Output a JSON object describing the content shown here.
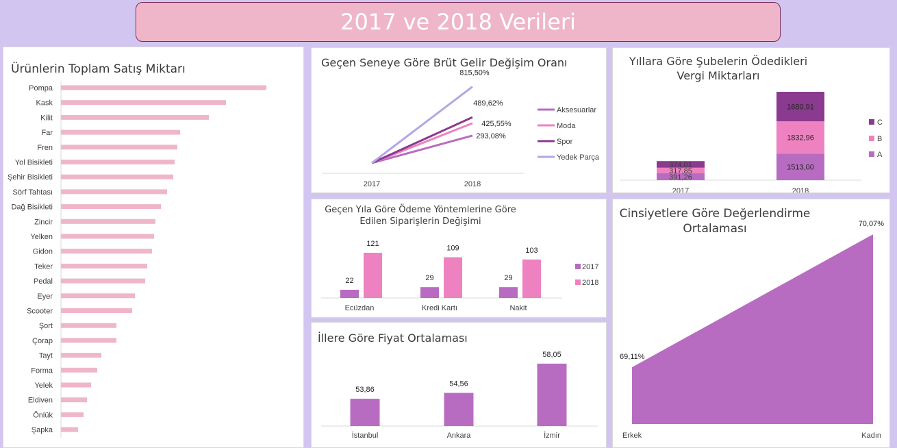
{
  "header": {
    "title": "2017 ve 2018 Verileri"
  },
  "colors": {
    "background": "#d2c6f0",
    "banner": "#efb6c9",
    "bar_pink_light": "#efb6c9",
    "purple": "#b86cc1",
    "pink": "#ee82c0",
    "dark_purple": "#8a3a8f",
    "lavender": "#b3a6e6"
  },
  "chart_data": [
    {
      "id": "product-sales",
      "type": "bar",
      "orientation": "horizontal",
      "title": "Ürünlerin Toplam Satış Miktarı",
      "categories": [
        "Pompa",
        "Kask",
        "Kilit",
        "Far",
        "Fren",
        "Yol Bisikleti",
        "Şehir Bisikleti",
        "Sörf Tahtası",
        "Dağ Bisikleti",
        "Zincir",
        "Yelken",
        "Gidon",
        "Teker",
        "Pedal",
        "Eyer",
        "Scooter",
        "Şort",
        "Çorap",
        "Tayt",
        "Forma",
        "Yelek",
        "Eldiven",
        "Önlük",
        "Şapka"
      ],
      "values": [
        300,
        241,
        216,
        174,
        170,
        166,
        164,
        155,
        146,
        138,
        136,
        133,
        126,
        123,
        108,
        104,
        81,
        81,
        59,
        53,
        44,
        38,
        33,
        25
      ],
      "xlim": [
        0,
        310
      ]
    },
    {
      "id": "gross-income-change",
      "type": "line",
      "title": "Geçen Seneye Göre Brüt Gelir Değişim Oranı",
      "categories": [
        "2017",
        "2018"
      ],
      "series": [
        {
          "name": "Aksesuarlar",
          "values": [
            0,
            293.08
          ],
          "labels": [
            "",
            "293,08%"
          ]
        },
        {
          "name": "Moda",
          "values": [
            0,
            425.55
          ],
          "labels": [
            "",
            "425,55%"
          ]
        },
        {
          "name": "Spor",
          "values": [
            0,
            489.62
          ],
          "labels": [
            "",
            "489,62%"
          ]
        },
        {
          "name": "Yedek Parça",
          "values": [
            0,
            815.5
          ],
          "labels": [
            "",
            "815,50%"
          ]
        }
      ],
      "legend": "right",
      "ylim": [
        0,
        900
      ]
    },
    {
      "id": "branch-tax",
      "type": "bar",
      "stacked": true,
      "title": "Yıllara Göre Şubelerin Ödedikleri Vergi Miktarları",
      "categories": [
        "2017",
        "2018"
      ],
      "series": [
        {
          "name": "A",
          "values": [
            391.26,
            1513.0
          ],
          "labels": [
            "391,26",
            "1513,00"
          ]
        },
        {
          "name": "B",
          "values": [
            317.85,
            1832.96
          ],
          "labels": [
            "317,85",
            "1832,96"
          ]
        },
        {
          "name": "C",
          "values": [
            374.01,
            1680.91
          ],
          "labels": [
            "374,01",
            "1680,91"
          ]
        }
      ],
      "legend": "right",
      "ylim": [
        0,
        5200
      ]
    },
    {
      "id": "payment-methods",
      "type": "bar",
      "title": "Geçen Yıla Göre Ödeme Yöntemlerine Göre Edilen Siparişlerin Değişimi",
      "categories": [
        "Ecüzdan",
        "Kredi Kartı",
        "Nakit"
      ],
      "series": [
        {
          "name": "2017",
          "values": [
            22,
            29,
            29
          ]
        },
        {
          "name": "2018",
          "values": [
            121,
            109,
            103
          ]
        }
      ],
      "legend": "right",
      "ylim": [
        0,
        140
      ]
    },
    {
      "id": "city-price",
      "type": "bar",
      "title": "İllere Göre Fiyat Ortalaması",
      "categories": [
        "İstanbul",
        "Ankara",
        "İzmir"
      ],
      "values": [
        53.86,
        54.56,
        58.05
      ],
      "labels": [
        "53,86",
        "54,56",
        "58,05"
      ],
      "ylim": [
        50.6,
        60
      ]
    },
    {
      "id": "gender-rating",
      "type": "area",
      "title": "Cinsiyetlere Göre Değerlendirme Ortalaması",
      "categories": [
        "Erkek",
        "Kadın"
      ],
      "values": [
        69.11,
        70.07
      ],
      "labels": [
        "69,11%",
        "70,07%"
      ],
      "ylim": [
        68.7,
        70.1
      ]
    }
  ]
}
